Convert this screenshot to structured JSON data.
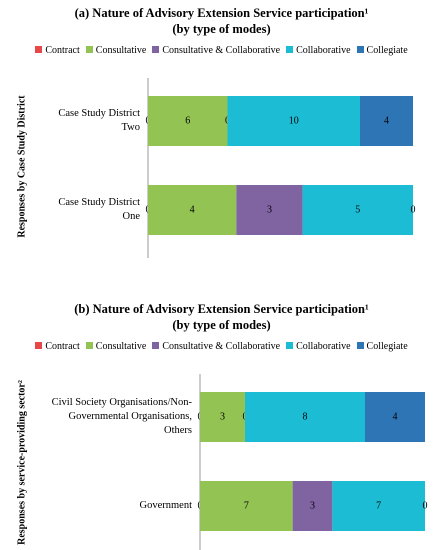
{
  "chart_data": [
    {
      "type": "bar",
      "orientation": "horizontal",
      "stacked": "percent",
      "title": "(a) Nature of Advisory Extension Service participation¹",
      "subtitle": "(by type of modes)",
      "y_label": "Responses by Case Study District",
      "legend": "top",
      "categories": [
        "Case Study District Two",
        "Case Study District One"
      ],
      "series": [
        {
          "name": "Contract",
          "color": "#e8474a",
          "values": [
            0,
            0
          ]
        },
        {
          "name": "Consultative",
          "color": "#92c353",
          "values": [
            6,
            4
          ]
        },
        {
          "name": "Consultative & Collaborative",
          "color": "#8064a2",
          "values": [
            0,
            3
          ]
        },
        {
          "name": "Collaborative",
          "color": "#1bbcd4",
          "values": [
            10,
            5
          ]
        },
        {
          "name": "Collegiate",
          "color": "#2e75b6",
          "values": [
            4,
            0
          ]
        }
      ]
    },
    {
      "type": "bar",
      "orientation": "horizontal",
      "stacked": "percent",
      "title": "(b) Nature of Advisory Extension Service participation¹",
      "subtitle": "(by type of modes)",
      "y_label": "Responses by service-providing sector²",
      "legend": "top",
      "categories": [
        "Civil Society Organisations/Non-Governmental Organisations, Others",
        "Government"
      ],
      "series": [
        {
          "name": "Contract",
          "color": "#e8474a",
          "values": [
            0,
            0
          ]
        },
        {
          "name": "Consultative",
          "color": "#92c353",
          "values": [
            3,
            7
          ]
        },
        {
          "name": "Consultative & Collaborative",
          "color": "#8064a2",
          "values": [
            0,
            3
          ]
        },
        {
          "name": "Collaborative",
          "color": "#1bbcd4",
          "values": [
            8,
            7
          ]
        },
        {
          "name": "Collegiate",
          "color": "#2e75b6",
          "values": [
            4,
            0
          ]
        }
      ]
    }
  ]
}
